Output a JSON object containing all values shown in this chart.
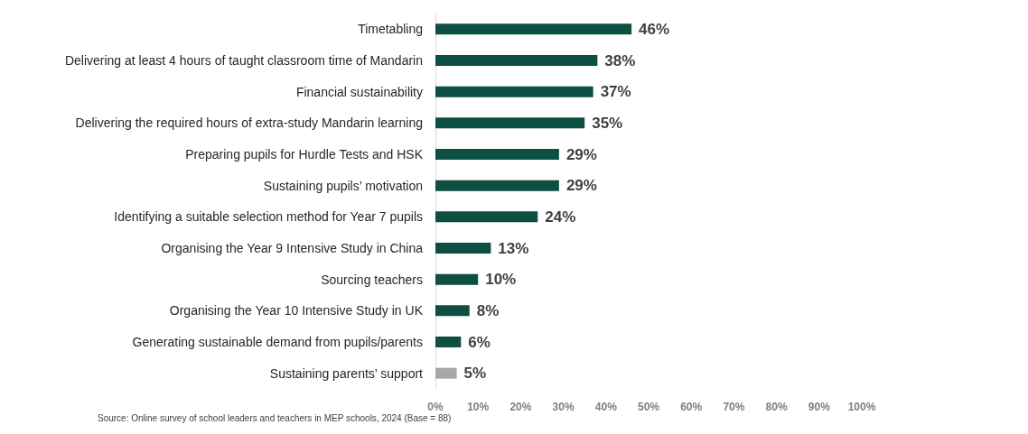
{
  "chart_data": {
    "type": "bar",
    "orientation": "horizontal",
    "categories": [
      "Timetabling",
      "Delivering at least 4 hours of taught classroom time of Mandarin",
      "Financial sustainability",
      "Delivering the required hours of extra-study Mandarin learning",
      "Preparing pupils for Hurdle Tests and HSK",
      "Sustaining pupils’ motivation",
      "Identifying a suitable selection method for Year 7 pupils",
      "Organising the Year 9 Intensive Study in China",
      "Sourcing teachers",
      "Organising the Year 10 Intensive Study in UK",
      "Generating sustainable demand from pupils/parents",
      "Sustaining parents’ support"
    ],
    "values": [
      46,
      38,
      37,
      35,
      29,
      29,
      24,
      13,
      10,
      8,
      6,
      5
    ],
    "value_labels": [
      "46%",
      "38%",
      "37%",
      "35%",
      "29%",
      "29%",
      "24%",
      "13%",
      "10%",
      "8%",
      "6%",
      "5%"
    ],
    "colors": [
      "#0e4f43",
      "#0e4f43",
      "#0e4f43",
      "#0e4f43",
      "#0e4f43",
      "#0e4f43",
      "#0e4f43",
      "#0e4f43",
      "#0e4f43",
      "#0e4f43",
      "#0e4f43",
      "#a6a6a6"
    ],
    "xlim": [
      0,
      100
    ],
    "xticks": [
      {
        "value": 0,
        "label": "0%"
      },
      {
        "value": 10,
        "label": "10%"
      },
      {
        "value": 20,
        "label": "20%"
      },
      {
        "value": 30,
        "label": "30%"
      },
      {
        "value": 40,
        "label": "40%"
      },
      {
        "value": 50,
        "label": "50%"
      },
      {
        "value": 60,
        "label": "60%"
      },
      {
        "value": 70,
        "label": "70%"
      },
      {
        "value": 80,
        "label": "80%"
      },
      {
        "value": 90,
        "label": "90%"
      },
      {
        "value": 100,
        "label": "100%"
      }
    ],
    "grid": false,
    "annotations": [
      "Source: Online survey of school leaders and teachers in MEP schools, 2024 (Base = 88)"
    ]
  }
}
